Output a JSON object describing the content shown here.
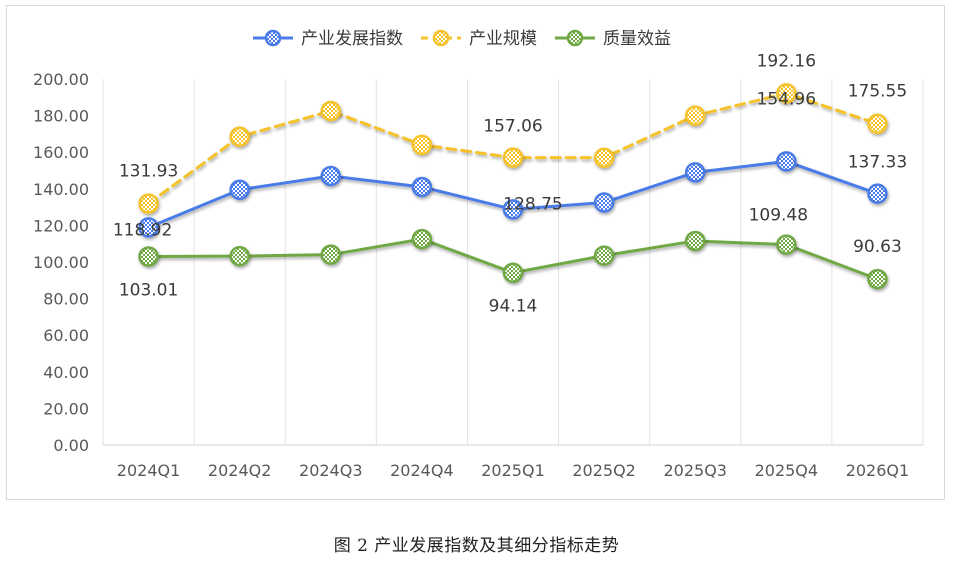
{
  "caption": "图 2  产业发展指数及其细分指标走势",
  "chart_data": {
    "type": "line",
    "categories": [
      "2024Q1",
      "2024Q2",
      "2024Q3",
      "2024Q4",
      "2025Q1",
      "2025Q2",
      "2025Q3",
      "2025Q4",
      "2026Q1"
    ],
    "ylim": [
      0,
      200
    ],
    "yticks": [
      "0.00",
      "20.00",
      "40.00",
      "60.00",
      "80.00",
      "100.00",
      "120.00",
      "140.00",
      "160.00",
      "180.00",
      "200.00"
    ],
    "grid": "vertical",
    "legend_position": "top",
    "series": [
      {
        "name": "产业发展指数",
        "color": "#4a7be8",
        "line_style": "solid",
        "values": [
          118.92,
          139.5,
          147.0,
          141.0,
          128.75,
          132.5,
          149.0,
          154.96,
          137.33
        ],
        "labels": [
          "118.92",
          "",
          "",
          "",
          "128.75",
          "",
          "",
          "154.96",
          "137.33"
        ]
      },
      {
        "name": "产业规模",
        "color": "#f5c22a",
        "line_style": "dashed",
        "values": [
          131.93,
          168.5,
          182.5,
          164.0,
          157.06,
          157.0,
          180.0,
          192.16,
          175.55
        ],
        "labels": [
          "131.93",
          "",
          "",
          "",
          "157.06",
          "",
          "",
          "192.16",
          "175.55"
        ]
      },
      {
        "name": "质量效益",
        "color": "#70a844",
        "line_style": "solid",
        "values": [
          103.01,
          103.2,
          104.0,
          112.5,
          94.14,
          103.5,
          111.5,
          109.48,
          90.63
        ],
        "labels": [
          "103.01",
          "",
          "",
          "",
          "94.14",
          "",
          "",
          "109.48",
          "90.63"
        ]
      }
    ]
  }
}
